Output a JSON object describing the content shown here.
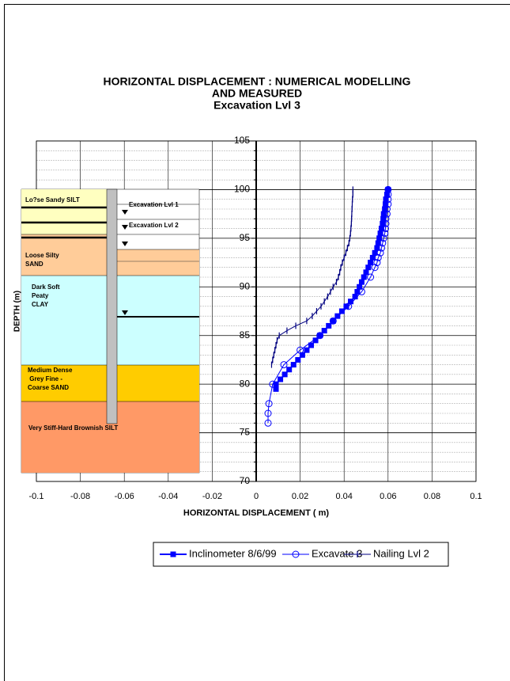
{
  "chart_data": {
    "type": "line",
    "title": [
      "HORIZONTAL DISPLACEMENT : NUMERICAL MODELLING",
      "AND MEASURED",
      "Excavation Lvl 3"
    ],
    "x_label": "HORIZONTAL DISPLACEMENT ( m)",
    "y_label": "DEPTH (m)",
    "xlim": [
      -0.1,
      0.1
    ],
    "xticks": [
      -0.1,
      -0.08,
      -0.06,
      -0.04,
      -0.02,
      0,
      0.02,
      0.04,
      0.06,
      0.08,
      0.1
    ],
    "ylim": [
      70,
      105
    ],
    "yticks": [
      70,
      75,
      80,
      85,
      90,
      95,
      100,
      105
    ],
    "y_minor_ticks": [
      71,
      72,
      73,
      74,
      76,
      77,
      78,
      79,
      81,
      82,
      83,
      84,
      86,
      87,
      88,
      89,
      91,
      92,
      93,
      94,
      96,
      97,
      98,
      99,
      101,
      102,
      103,
      104
    ],
    "grid": true,
    "legend": "bottom",
    "series": [
      {
        "name": "Inclinometer 8/6/99",
        "color": "#0000ff",
        "marker": "square",
        "line_width": 2,
        "y": [
          100,
          99.5,
          99,
          98.5,
          98,
          97.5,
          97,
          96.5,
          96,
          95.5,
          95,
          94.5,
          94,
          93.5,
          93,
          92.5,
          92,
          91.5,
          91,
          90.5,
          90,
          89.5,
          89,
          88.5,
          88,
          87.5,
          87,
          86.5,
          86,
          85.5,
          85,
          84.5,
          84,
          83.5,
          83,
          82.5,
          82,
          81.5,
          81,
          80.5,
          80,
          79.5
        ],
        "x": [
          0.06,
          0.0595,
          0.059,
          0.0588,
          0.0585,
          0.058,
          0.0578,
          0.0575,
          0.057,
          0.0565,
          0.056,
          0.0555,
          0.055,
          0.054,
          0.053,
          0.052,
          0.051,
          0.05,
          0.049,
          0.048,
          0.047,
          0.046,
          0.045,
          0.043,
          0.041,
          0.039,
          0.037,
          0.035,
          0.033,
          0.031,
          0.029,
          0.027,
          0.025,
          0.023,
          0.021,
          0.019,
          0.017,
          0.015,
          0.013,
          0.011,
          0.009,
          0.009
        ]
      },
      {
        "name": "Excavate 3",
        "color": "#0000ff",
        "marker": "circle",
        "line_width": 1,
        "y": [
          100,
          99.5,
          99,
          98.5,
          98,
          97.5,
          97,
          96.5,
          96,
          95.5,
          95,
          94.5,
          94,
          93.5,
          93,
          92.5,
          92,
          91,
          89.5,
          88,
          86.5,
          85,
          83.5,
          82,
          80,
          78,
          77,
          76
        ],
        "x": [
          0.06,
          0.06,
          0.06,
          0.06,
          0.0595,
          0.0595,
          0.059,
          0.059,
          0.0588,
          0.0585,
          0.058,
          0.0575,
          0.057,
          0.0565,
          0.0555,
          0.055,
          0.054,
          0.052,
          0.048,
          0.042,
          0.035,
          0.029,
          0.02,
          0.0126,
          0.0075,
          0.0058,
          0.0054,
          0.0054
        ]
      },
      {
        "name": "Nailing Lvl 2",
        "color": "#000080",
        "marker": "dash",
        "line_width": 1,
        "y": [
          100,
          99.5,
          99,
          98.5,
          98,
          97.5,
          97,
          96.5,
          96,
          95.5,
          95,
          94.5,
          94,
          93.5,
          93,
          92.5,
          92,
          91.5,
          91,
          90.5,
          90,
          89.5,
          89,
          88.5,
          88,
          87.5,
          87,
          86.5,
          86,
          85.5,
          85,
          84.5,
          84,
          83.5,
          83,
          82.5,
          82
        ],
        "x": [
          0.044,
          0.044,
          0.0438,
          0.0437,
          0.0436,
          0.0435,
          0.0434,
          0.0433,
          0.0431,
          0.0429,
          0.0426,
          0.0422,
          0.0415,
          0.0408,
          0.04,
          0.0392,
          0.0385,
          0.038,
          0.0374,
          0.0365,
          0.035,
          0.0338,
          0.0325,
          0.031,
          0.0295,
          0.0275,
          0.0255,
          0.023,
          0.018,
          0.014,
          0.0105,
          0.0095,
          0.009,
          0.0085,
          0.008,
          0.0075,
          0.007
        ]
      }
    ]
  },
  "soil_profile": {
    "layers": [
      [
        "Lo?se Sandy SILT"
      ],
      [
        "Loose Silty",
        "SAND"
      ],
      [
        "Dark Soft",
        "Peaty",
        "CLAY"
      ],
      [
        "Medium Dense",
        " Grey Fine -",
        "Coarse SAND"
      ],
      [
        "Very Stiff-Hard Brownish SILT"
      ]
    ],
    "excavation_labels": [
      "Excavation Lvl 1",
      "Excavation Lvl 2"
    ]
  }
}
